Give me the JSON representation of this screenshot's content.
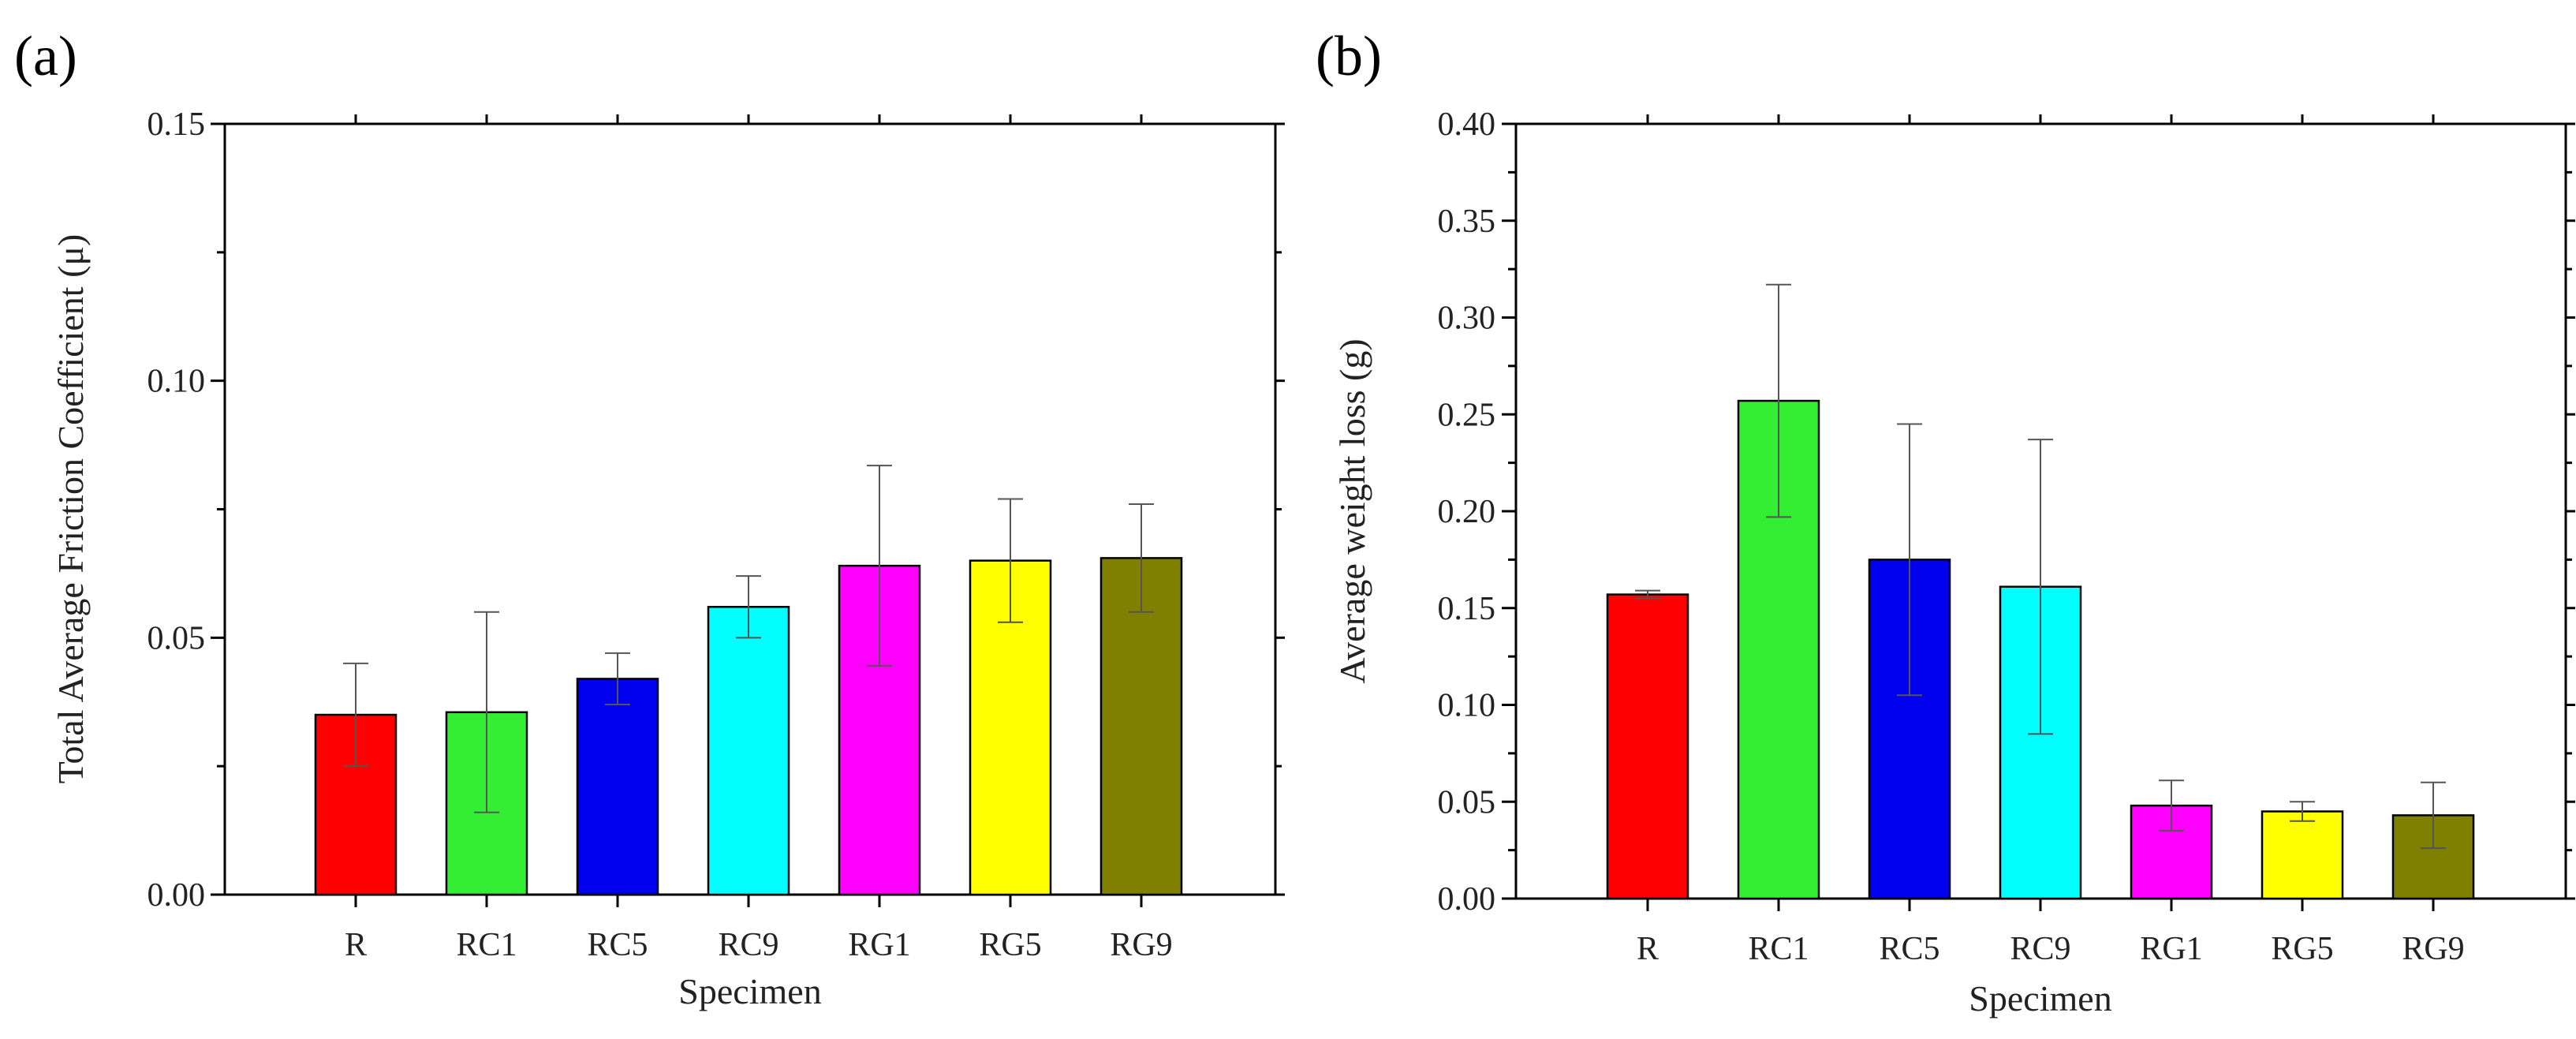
{
  "chart_data": [
    {
      "type": "bar",
      "panel_label": "(a)",
      "title": "",
      "xlabel": "Specimen",
      "ylabel": "Total Average Friction Coefficient (μ)",
      "categories": [
        "R",
        "RC1",
        "RC5",
        "RC9",
        "RG1",
        "RG5",
        "RG9"
      ],
      "values": [
        0.035,
        0.0355,
        0.042,
        0.056,
        0.064,
        0.065,
        0.0655
      ],
      "errors": [
        0.01,
        0.0195,
        0.005,
        0.006,
        0.0195,
        0.012,
        0.0105
      ],
      "colors": [
        "#ff0000",
        "#33ee33",
        "#0000ee",
        "#00ffff",
        "#ff00ff",
        "#ffff00",
        "#808000"
      ],
      "ylim": [
        0,
        0.15
      ],
      "yticks": [
        "0.00",
        "0.05",
        "0.10",
        "0.15"
      ],
      "grid": false,
      "legend": "none"
    },
    {
      "type": "bar",
      "panel_label": "(b)",
      "title": "",
      "xlabel": "Specimen",
      "ylabel": "Average weight loss (g)",
      "categories": [
        "R",
        "RC1",
        "RC5",
        "RC9",
        "RG1",
        "RG5",
        "RG9"
      ],
      "values": [
        0.157,
        0.257,
        0.175,
        0.161,
        0.048,
        0.045,
        0.043
      ],
      "errors": [
        0.002,
        0.06,
        0.07,
        0.076,
        0.013,
        0.005,
        0.017
      ],
      "colors": [
        "#ff0000",
        "#33ee33",
        "#0000ee",
        "#00ffff",
        "#ff00ff",
        "#ffff00",
        "#808000"
      ],
      "ylim": [
        0,
        0.4
      ],
      "yticks": [
        "0.00",
        "0.05",
        "0.10",
        "0.15",
        "0.20",
        "0.25",
        "0.30",
        "0.35",
        "0.40"
      ],
      "grid": false,
      "legend": "none"
    }
  ]
}
